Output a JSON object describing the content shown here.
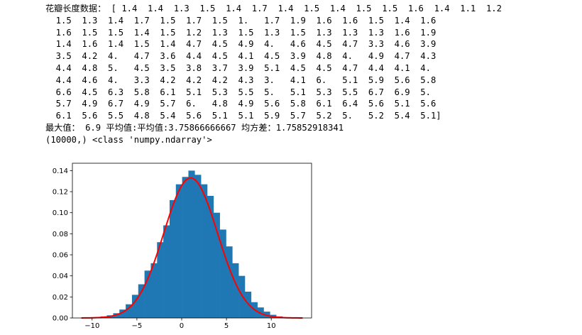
{
  "console": {
    "lines": [
      "花瓣长度数据： [ 1.4  1.4  1.3  1.5  1.4  1.7  1.4  1.5  1.4  1.5  1.5  1.6  1.4  1.1  1.2",
      "  1.5  1.3  1.4  1.7  1.5  1.7  1.5  1.   1.7  1.9  1.6  1.6  1.5  1.4  1.6",
      "  1.6  1.5  1.5  1.4  1.5  1.2  1.3  1.5  1.3  1.5  1.3  1.3  1.3  1.6  1.9",
      "  1.4  1.6  1.4  1.5  1.4  4.7  4.5  4.9  4.   4.6  4.5  4.7  3.3  4.6  3.9",
      "  3.5  4.2  4.   4.7  3.6  4.4  4.5  4.1  4.5  3.9  4.8  4.   4.9  4.7  4.3",
      "  4.4  4.8  5.   4.5  3.5  3.8  3.7  3.9  5.1  4.5  4.5  4.7  4.4  4.1  4.",
      "  4.4  4.6  4.   3.3  4.2  4.2  4.2  4.3  3.   4.1  6.   5.1  5.9  5.6  5.8",
      "  6.6  4.5  6.3  5.8  6.1  5.1  5.3  5.5  5.   5.1  5.3  5.5  6.7  6.9  5.",
      "  5.7  4.9  6.7  4.9  5.7  6.   4.8  4.9  5.6  5.8  6.1  6.4  5.6  5.1  5.6",
      "  6.1  5.6  5.5  4.8  5.4  5.6  5.1  5.1  5.9  5.7  5.2  5.   5.2  5.4  5.1]",
      "最大值： 6.9 平均值:平均值:3.75866666667 均方差：1.75852918341",
      "(10000,) <class 'numpy.ndarray'>"
    ]
  },
  "chart_data": {
    "type": "bar",
    "title": "",
    "xlabel": "",
    "ylabel": "",
    "xlim": [
      -12.2,
      14.5
    ],
    "ylim": [
      0,
      0.147
    ],
    "xticks": [
      -10,
      -5,
      0,
      5,
      10
    ],
    "xtick_labels": [
      "−10",
      "−5",
      "0",
      "5",
      "10"
    ],
    "yticks": [
      0.0,
      0.02,
      0.04,
      0.06,
      0.08,
      0.1,
      0.12,
      0.14
    ],
    "ytick_labels": [
      "0.00",
      "0.02",
      "0.04",
      "0.06",
      "0.08",
      "0.10",
      "0.12",
      "0.14"
    ],
    "grid": false,
    "histogram": {
      "color": "#1f77b4",
      "bin_edges": [
        -11.15,
        -10.45,
        -9.75,
        -9.05,
        -8.35,
        -7.65,
        -6.95,
        -6.25,
        -5.55,
        -4.85,
        -4.15,
        -3.45,
        -2.75,
        -2.05,
        -1.35,
        -0.65,
        0.05,
        0.75,
        1.45,
        2.15,
        2.85,
        3.55,
        4.25,
        4.95,
        5.65,
        6.35,
        7.05,
        7.75,
        8.45,
        9.15,
        9.85,
        10.55,
        11.25,
        11.95,
        12.65,
        13.35
      ],
      "values": [
        0.0002,
        0.0004,
        0.0008,
        0.0015,
        0.0025,
        0.0045,
        0.008,
        0.013,
        0.022,
        0.032,
        0.045,
        0.052,
        0.072,
        0.088,
        0.112,
        0.127,
        0.134,
        0.14,
        0.136,
        0.127,
        0.116,
        0.1,
        0.084,
        0.068,
        0.052,
        0.04,
        0.025,
        0.015,
        0.01,
        0.006,
        0.003,
        0.0015,
        0.0006,
        0.0002,
        0.0001
      ]
    },
    "series": [
      {
        "type": "line",
        "color": "#ff0000",
        "mean": 1.0,
        "std": 3.0,
        "x_range": [
          -11.2,
          13.5
        ]
      }
    ]
  }
}
